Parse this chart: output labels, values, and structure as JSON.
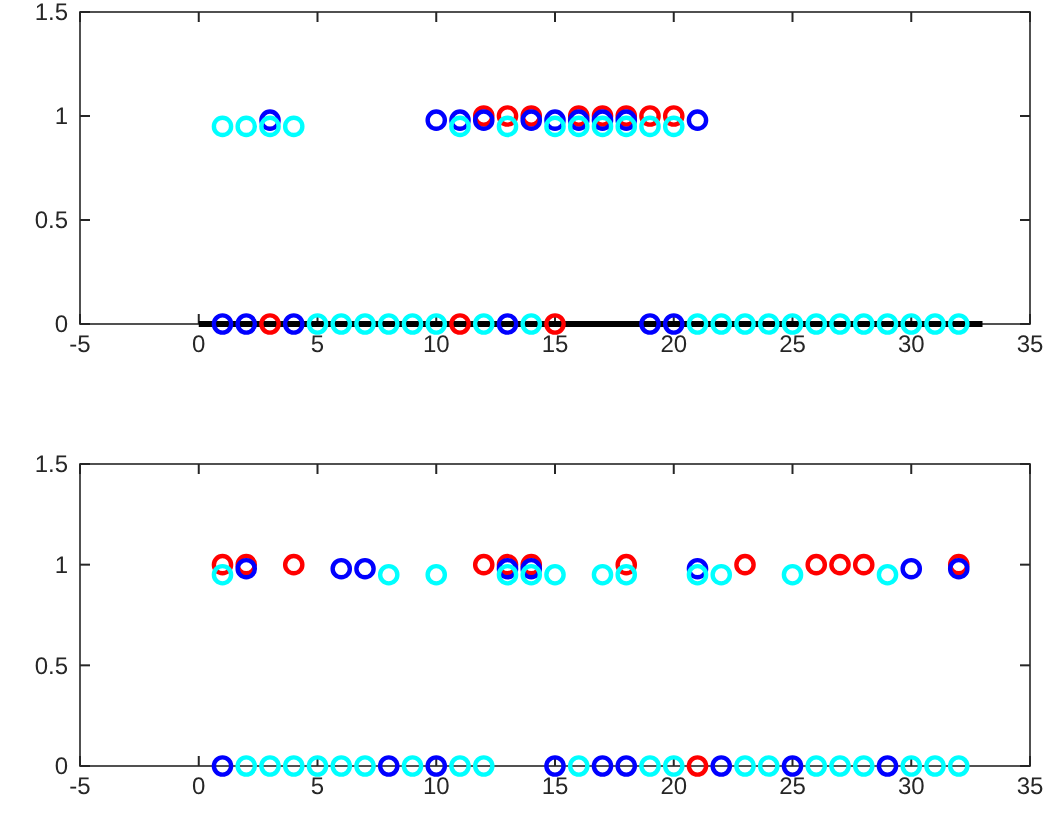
{
  "chart_data": [
    {
      "type": "scatter",
      "xlim": [
        -5,
        35
      ],
      "xticks": [
        -5,
        0,
        5,
        10,
        15,
        20,
        25,
        30,
        35
      ],
      "ylim": [
        0,
        1.5
      ],
      "yticks": [
        0,
        0.5,
        1,
        1.5
      ],
      "marker": "circle",
      "grid": false,
      "series": [
        {
          "type": "line",
          "marker": "none",
          "color": "#000000",
          "x": [
            0,
            33
          ],
          "values": [
            0,
            0
          ]
        },
        {
          "color": "#ff0000",
          "x": [
            3,
            11,
            15,
            12,
            13,
            14,
            16,
            17,
            18,
            19,
            20
          ],
          "values": [
            0,
            0,
            0,
            1,
            1,
            1,
            1,
            1,
            1,
            1,
            1
          ]
        },
        {
          "color": "#0000ff",
          "x": [
            1,
            2,
            4,
            13,
            19,
            20,
            3,
            10,
            11,
            12,
            14,
            15,
            16,
            17,
            18,
            21
          ],
          "values": [
            0,
            0,
            0,
            0,
            0,
            0,
            0.98,
            0.98,
            0.98,
            0.98,
            0.98,
            0.98,
            0.98,
            0.98,
            0.98,
            0.98
          ]
        },
        {
          "color": "#00ffff",
          "x": [
            5,
            6,
            7,
            8,
            9,
            10,
            12,
            14,
            21,
            22,
            23,
            24,
            25,
            26,
            27,
            28,
            29,
            30,
            31,
            32,
            1,
            2,
            3,
            4,
            11,
            13,
            15,
            16,
            17,
            18,
            19,
            20
          ],
          "values": [
            0,
            0,
            0,
            0,
            0,
            0,
            0,
            0,
            0,
            0,
            0,
            0,
            0,
            0,
            0,
            0,
            0,
            0,
            0,
            0,
            0.95,
            0.95,
            0.95,
            0.95,
            0.95,
            0.95,
            0.95,
            0.95,
            0.95,
            0.95,
            0.95,
            0.95
          ]
        }
      ]
    },
    {
      "type": "scatter",
      "xlim": [
        -5,
        35
      ],
      "xticks": [
        -5,
        0,
        5,
        10,
        15,
        20,
        25,
        30,
        35
      ],
      "ylim": [
        0,
        1.5
      ],
      "yticks": [
        0,
        0.5,
        1,
        1.5
      ],
      "marker": "circle",
      "grid": false,
      "series": [
        {
          "color": "#ff0000",
          "x": [
            21,
            1,
            2,
            4,
            12,
            13,
            14,
            18,
            23,
            26,
            27,
            28,
            32
          ],
          "values": [
            0,
            1,
            1,
            1,
            1,
            1,
            1,
            1,
            1,
            1,
            1,
            1,
            1
          ]
        },
        {
          "color": "#0000ff",
          "x": [
            1,
            8,
            10,
            15,
            17,
            18,
            22,
            25,
            29,
            2,
            6,
            7,
            13,
            14,
            21,
            30,
            32
          ],
          "values": [
            0,
            0,
            0,
            0,
            0,
            0,
            0,
            0,
            0,
            0.98,
            0.98,
            0.98,
            0.98,
            0.98,
            0.98,
            0.98,
            0.98
          ]
        },
        {
          "color": "#00ffff",
          "x": [
            2,
            3,
            4,
            5,
            6,
            7,
            9,
            11,
            12,
            16,
            19,
            20,
            23,
            24,
            26,
            27,
            28,
            30,
            31,
            32,
            1,
            8,
            10,
            13,
            14,
            15,
            17,
            18,
            21,
            22,
            25,
            29
          ],
          "values": [
            0,
            0,
            0,
            0,
            0,
            0,
            0,
            0,
            0,
            0,
            0,
            0,
            0,
            0,
            0,
            0,
            0,
            0,
            0,
            0,
            0.95,
            0.95,
            0.95,
            0.95,
            0.95,
            0.95,
            0.95,
            0.95,
            0.95,
            0.95,
            0.95,
            0.95
          ]
        }
      ]
    }
  ]
}
